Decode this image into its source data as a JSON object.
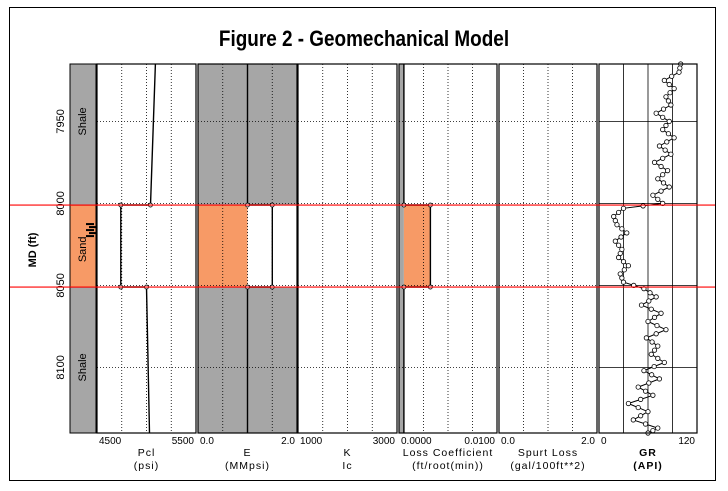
{
  "title": "Figure 2 -  Geomechanical Model",
  "chart_data": {
    "type": "line",
    "depth_axis": {
      "label": "MD (ft)",
      "ticks": [
        "7950",
        "8000",
        "8050",
        "8100"
      ],
      "tick_values": [
        7950,
        8000,
        8050,
        8100
      ],
      "range": [
        7915,
        8140
      ]
    },
    "interval_markers": [
      8001,
      8051
    ],
    "lithology": [
      {
        "label": "Shale",
        "top": 7915,
        "bottom": 8001,
        "color": "#a6a6a6",
        "label_depth": 7950
      },
      {
        "label": "Sand",
        "top": 8001,
        "bottom": 8051,
        "color": "#f79a66",
        "label_depth": 8028
      },
      {
        "label": "Shale",
        "top": 8051,
        "bottom": 8140,
        "color": "#a6a6a6",
        "label_depth": 8100
      }
    ],
    "tracks": [
      {
        "key": "pcl",
        "label": "Pcl",
        "unit": "(psi)",
        "min_label": "4500",
        "max_label": "5500",
        "range": [
          4500,
          5500
        ],
        "series": [
          {
            "depth": [
              7915,
              8001,
              8001,
              8051,
              8051,
              8140
            ],
            "values": [
              5090,
              5040,
              4740,
              4740,
              5000,
              5030
            ]
          }
        ]
      },
      {
        "key": "e",
        "label": "E",
        "unit": "(MMpsi)",
        "min_label": "0.0",
        "max_label": "2.0",
        "range": [
          0,
          2
        ],
        "background": "#a6a6a6",
        "series": [
          {
            "depth": [
              7915,
              8001,
              8001,
              8051,
              8051,
              8140
            ],
            "values": [
              1.0,
              1.0,
              1.5,
              1.5,
              1.0,
              1.0
            ]
          }
        ],
        "fill_interval": {
          "top": 8001,
          "bottom": 8051,
          "from": 0,
          "to": 1.0,
          "color": "#f79a66"
        }
      },
      {
        "key": "k",
        "label": "K",
        "unit": "Ic",
        "min_label": "1000",
        "max_label": "3000",
        "range": [
          1000,
          3000
        ],
        "series": []
      },
      {
        "key": "loss",
        "label": "Loss Coefficient",
        "unit": "(ft/root(min))",
        "min_label": "0.0000",
        "max_label": "0.0100",
        "range": [
          0,
          0.01
        ],
        "series": [
          {
            "depth": [
              7915,
              8001,
              8001,
              8051,
              8051,
              8140
            ],
            "values": [
              0.0005,
              0.0005,
              0.0032,
              0.0032,
              0.0005,
              0.0005
            ]
          }
        ],
        "fill_interval": {
          "top": 8001,
          "bottom": 8051,
          "from": 0.0005,
          "to": 0.0032,
          "color": "#f79a66"
        },
        "left_band": {
          "to": 0.0005,
          "color": "#a6a6a6"
        }
      },
      {
        "key": "spurt",
        "label": "Spurt Loss",
        "unit": "(gal/100ft**2)",
        "min_label": "0.0",
        "max_label": "2.0",
        "range": [
          0,
          2
        ],
        "series": []
      },
      {
        "key": "gr",
        "label": "GR",
        "unit": "(API)",
        "min_label": "0",
        "max_label": "120",
        "range": [
          0,
          120
        ],
        "series": [
          {
            "depth": [
              7915,
              7920,
              7925,
              7930,
              7935,
              7940,
              7945,
              7950,
              7955,
              7960,
              7965,
              7970,
              7975,
              7980,
              7985,
              7990,
              7995,
              8000,
              8003,
              8008,
              8013,
              8018,
              8023,
              8028,
              8033,
              8038,
              8043,
              8048,
              8052,
              8057,
              8062,
              8067,
              8072,
              8077,
              8082,
              8087,
              8092,
              8097,
              8102,
              8107,
              8112,
              8117,
              8122,
              8127,
              8132,
              8137,
              8140
            ],
            "values": [
              100,
              98,
              80,
              92,
              82,
              88,
              70,
              86,
              78,
              92,
              74,
              88,
              68,
              84,
              72,
              86,
              66,
              78,
              30,
              18,
              22,
              34,
              20,
              28,
              24,
              36,
              26,
              30,
              55,
              70,
              52,
              76,
              60,
              82,
              58,
              72,
              64,
              80,
              55,
              74,
              48,
              66,
              36,
              60,
              42,
              72,
              60
            ]
          }
        ]
      }
    ]
  }
}
